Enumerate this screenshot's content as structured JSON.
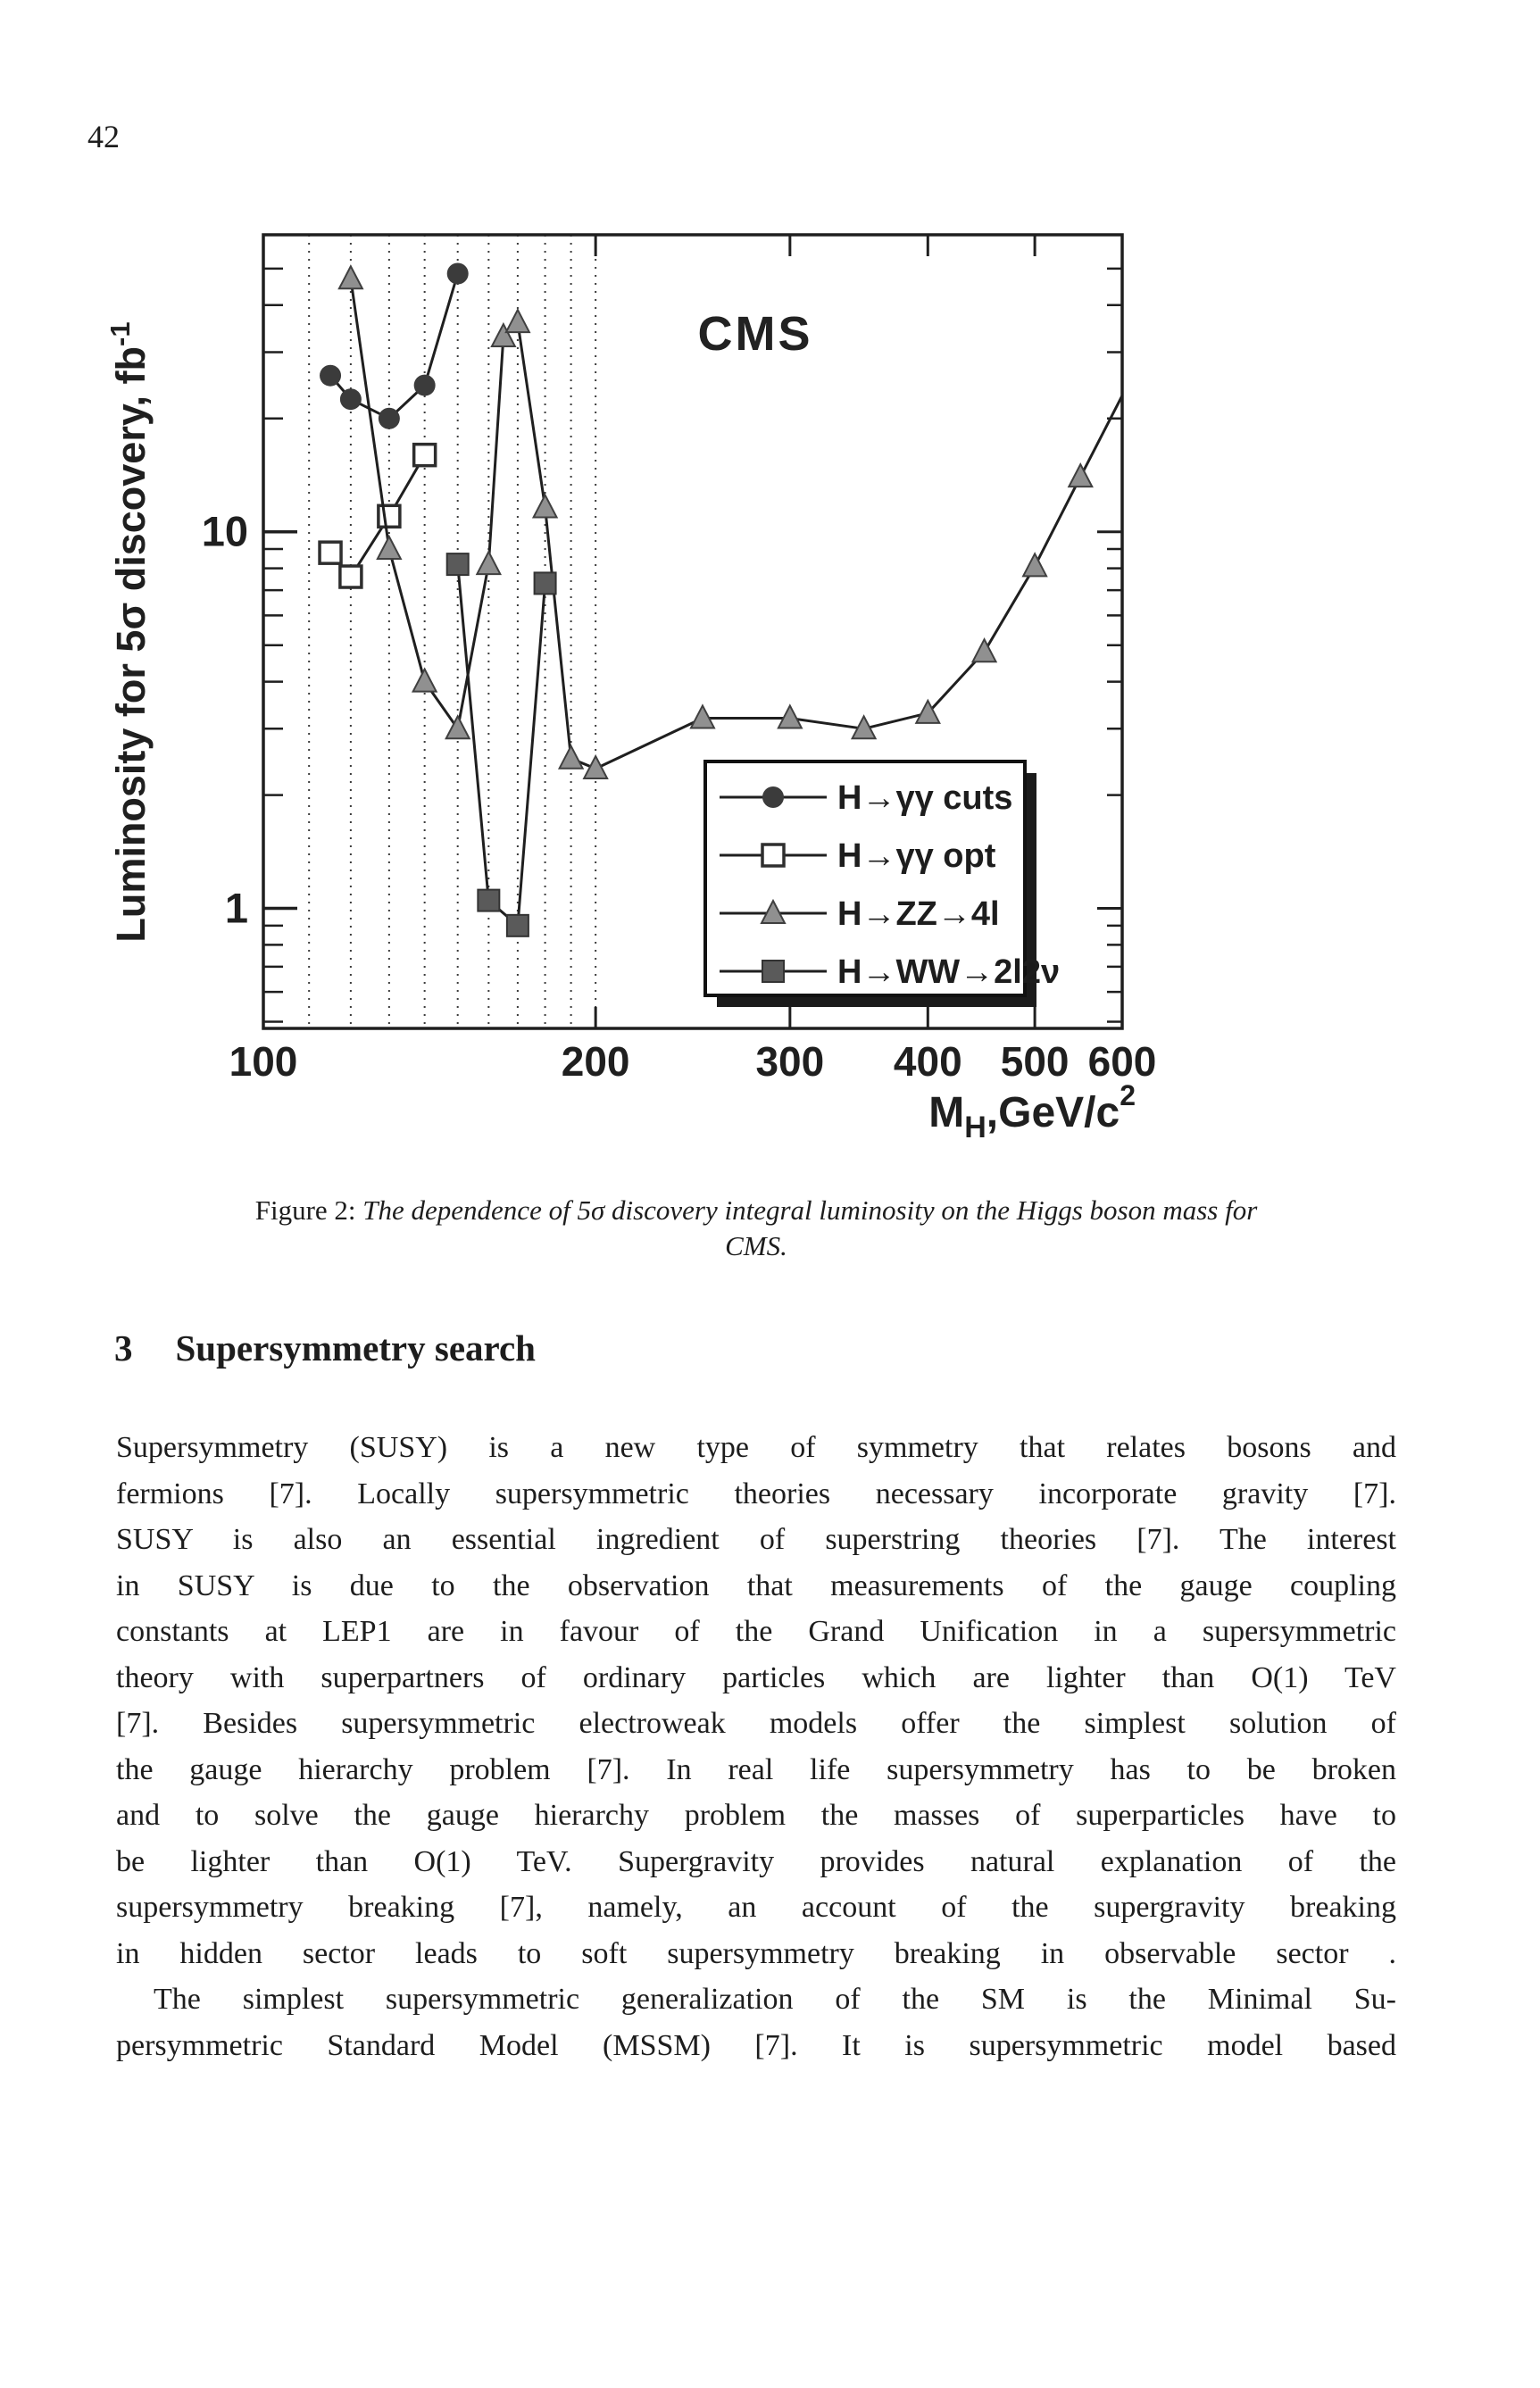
{
  "page": {
    "number": "42"
  },
  "chart_data": {
    "type": "line",
    "title": "CMS",
    "xlabel": {
      "base": "M",
      "subscript": "H",
      "rest": ",GeV/c",
      "superscript": "2"
    },
    "ylabel": {
      "text": "Luminosity for 5σ discovery, fb",
      "superscript": "-1"
    },
    "xscale": "log",
    "yscale": "log",
    "xlim": [
      100,
      600
    ],
    "ylim": [
      0.48,
      61.5
    ],
    "x_ticks": [
      100,
      200,
      300,
      400,
      500,
      600
    ],
    "x_minor_gridlines": [
      110,
      120,
      130,
      140,
      150,
      160,
      170,
      180,
      190,
      200
    ],
    "y_ticks": [
      1,
      10
    ],
    "y_minor_ticks": [
      0.5,
      0.6,
      0.7,
      0.8,
      0.9,
      2,
      3,
      4,
      5,
      6,
      7,
      8,
      9,
      20,
      30,
      40,
      50
    ],
    "grid": "dotted vertical gridlines at 110-200 only",
    "legend_position": "inside, lower middle",
    "series": [
      {
        "id": "hgg-cuts",
        "name": "H→γγ cuts",
        "marker": "circle-filled",
        "x": [
          115,
          120,
          130,
          140,
          150
        ],
        "y": [
          26,
          22.5,
          20,
          24.5,
          48.5
        ]
      },
      {
        "id": "hgg-opt",
        "name": "H→γγ opt",
        "marker": "square-open",
        "x": [
          115,
          120,
          130,
          140
        ],
        "y": [
          8.8,
          7.6,
          11,
          16
        ]
      },
      {
        "id": "hzz-4l",
        "name": "H→ZZ→4l",
        "marker": "triangle-filled",
        "x": [
          120,
          130,
          140,
          150,
          160,
          165,
          170,
          180,
          190,
          200,
          250,
          300,
          350,
          400,
          450,
          500,
          550,
          600
        ],
        "y": [
          47,
          9,
          4,
          3,
          8.2,
          33,
          36,
          11.6,
          2.5,
          2.35,
          3.2,
          3.2,
          3.0,
          3.3,
          4.8,
          8.1,
          14,
          23
        ]
      },
      {
        "id": "hww-2l2nu",
        "name": "H→WW→2l2ν",
        "marker": "square-filled",
        "x": [
          150,
          160,
          170,
          180
        ],
        "y": [
          8.2,
          1.05,
          0.9,
          7.3
        ]
      }
    ]
  },
  "caption": {
    "label": "Figure 2:",
    "text": "The dependence of 5σ discovery integral luminosity on the Higgs boson mass for",
    "line2": "CMS."
  },
  "section": {
    "number": "3",
    "title": "Supersymmetry search"
  },
  "body": {
    "indent_lines": [
      12
    ],
    "lines": [
      "Supersymmetry (SUSY) is a new type of symmetry that relates bosons and",
      "fermions [7]. Locally supersymmetric theories necessary incorporate gravity [7].",
      "SUSY is also an essential ingredient of superstring theories [7]. The interest",
      "in SUSY is due to the observation that measurements of the gauge coupling",
      "constants at LEP1 are in favour of the Grand Unification in a supersymmetric",
      "theory with superpartners of ordinary particles which are lighter than O(1) TeV",
      "[7]. Besides supersymmetric electroweak models offer the simplest solution of",
      "the gauge hierarchy problem [7]. In real life supersymmetry has to be broken",
      "and to solve the gauge hierarchy problem the masses of superparticles have to",
      "be lighter than O(1) TeV. Supergravity provides natural explanation of the",
      "supersymmetry breaking [7], namely, an account of the supergravity breaking",
      "in hidden sector leads to soft supersymmetry breaking in observable sector .",
      "The simplest supersymmetric generalization of the SM is the Minimal Su-",
      "persymmetric Standard Model (MSSM) [7]. It is supersymmetric model based"
    ]
  }
}
